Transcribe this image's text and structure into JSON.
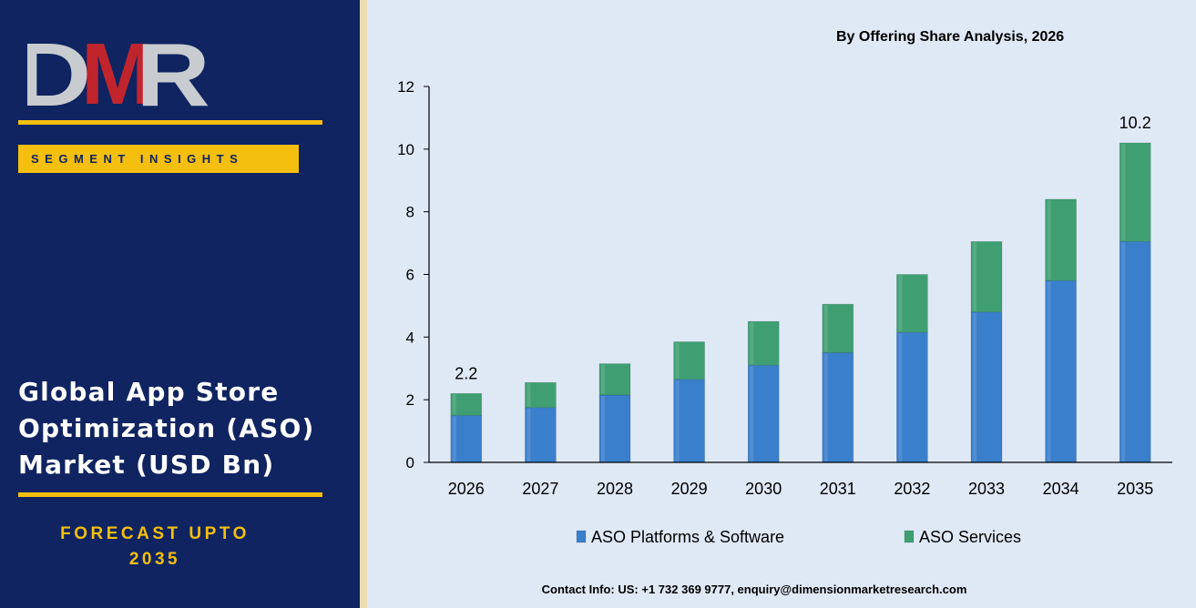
{
  "brand": {
    "logo_text": "DMR",
    "colors": {
      "navy": "#0f2460",
      "gold": "#f5bf10",
      "logo_red": "#c0252d",
      "logo_grey": "#c8ccd0"
    }
  },
  "sidebar": {
    "tag": "SEGMENT INSIGHTS",
    "title": "Global App Store\nOptimization (ASO)\nMarket (USD Bn)",
    "forecast": "FORECAST UPTO\n2035"
  },
  "chart_title": "By Offering Share Analysis, 2026",
  "contact": "Contact Info: US: +1 732 369 9777, enquiry@dimensionmarketresearch.com",
  "chart_data": {
    "type": "bar",
    "stacked": true,
    "categories": [
      "2026",
      "2027",
      "2028",
      "2029",
      "2030",
      "2031",
      "2032",
      "2033",
      "2034",
      "2035"
    ],
    "series": [
      {
        "name": "ASO Platforms & Software",
        "color": "#3a7fcc",
        "values": [
          1.5,
          1.75,
          2.15,
          2.65,
          3.1,
          3.5,
          4.15,
          4.8,
          5.8,
          7.05
        ]
      },
      {
        "name": "ASO Services",
        "color": "#3f9f73",
        "values": [
          0.7,
          0.8,
          1.0,
          1.2,
          1.4,
          1.55,
          1.85,
          2.25,
          2.6,
          3.15
        ]
      }
    ],
    "data_labels": [
      {
        "category": "2026",
        "text": "2.2"
      },
      {
        "category": "2035",
        "text": "10.2"
      }
    ],
    "ylim": [
      0,
      12
    ],
    "yticks": [
      0,
      2,
      4,
      6,
      8,
      10,
      12
    ],
    "grid": false,
    "legend": "bottom"
  }
}
